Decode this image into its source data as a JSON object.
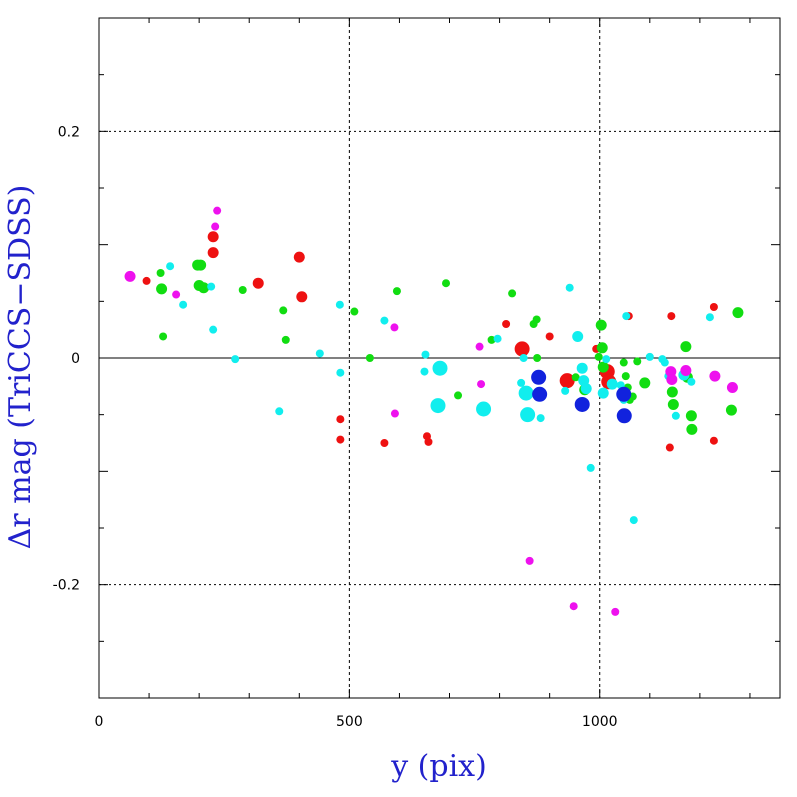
{
  "chart_data": {
    "type": "scatter",
    "title": "",
    "xlabel": "y (pix)",
    "ylabel": "Δr mag (TriCCS−SDSS)",
    "xlim": [
      0,
      1360
    ],
    "ylim": [
      -0.3,
      0.3
    ],
    "x_ticks": [
      0,
      500,
      1000
    ],
    "x_tick_labels": [
      "0",
      "500",
      "1000"
    ],
    "y_ticks": [
      -0.2,
      0,
      0.2
    ],
    "y_tick_labels": [
      "-0.2",
      "0",
      "0.2"
    ],
    "grid": true,
    "zero_line": true,
    "colors": {
      "red": "#ee1111",
      "green": "#11dd11",
      "cyan": "#11eeee",
      "magenta": "#ee11ee",
      "blue": "#1122dd"
    },
    "series": [
      {
        "color": "red",
        "points": [
          [
            95,
            0.068,
            1
          ],
          [
            228,
            0.107,
            2
          ],
          [
            228,
            0.093,
            2
          ],
          [
            318,
            0.066,
            2
          ],
          [
            400,
            0.089,
            2
          ],
          [
            405,
            0.054,
            2
          ],
          [
            482,
            -0.054,
            1
          ],
          [
            482,
            -0.072,
            1
          ],
          [
            570,
            -0.075,
            1
          ],
          [
            655,
            -0.069,
            1
          ],
          [
            658,
            -0.074,
            1
          ],
          [
            813,
            0.03,
            1
          ],
          [
            845,
            0.008,
            3
          ],
          [
            900,
            0.019,
            1
          ],
          [
            935,
            -0.02,
            3
          ],
          [
            993,
            0.008,
            1
          ],
          [
            1015,
            -0.012,
            3
          ],
          [
            1018,
            -0.021,
            3
          ],
          [
            1058,
            0.037,
            1
          ],
          [
            1143,
            0.037,
            1
          ],
          [
            1140,
            -0.079,
            1
          ],
          [
            1228,
            0.045,
            1
          ],
          [
            1228,
            -0.073,
            1
          ]
        ]
      },
      {
        "color": "green",
        "points": [
          [
            123,
            0.075,
            1
          ],
          [
            125,
            0.061,
            2
          ],
          [
            128,
            0.019,
            1
          ],
          [
            197,
            0.082,
            2
          ],
          [
            203,
            0.082,
            2
          ],
          [
            200,
            0.064,
            2
          ],
          [
            209,
            0.062,
            2
          ],
          [
            287,
            0.06,
            1
          ],
          [
            368,
            0.042,
            1
          ],
          [
            373,
            0.016,
            1
          ],
          [
            510,
            0.041,
            1
          ],
          [
            541,
            0.0,
            1
          ],
          [
            595,
            0.059,
            1
          ],
          [
            693,
            0.066,
            1
          ],
          [
            717,
            -0.033,
            1
          ],
          [
            784,
            0.016,
            1
          ],
          [
            825,
            0.057,
            1
          ],
          [
            868,
            0.03,
            1
          ],
          [
            874,
            0.034,
            1
          ],
          [
            875,
            0.0,
            1
          ],
          [
            952,
            -0.017,
            1
          ],
          [
            970,
            -0.028,
            2
          ],
          [
            998,
            0.001,
            1
          ],
          [
            1003,
            0.029,
            2
          ],
          [
            1005,
            0.009,
            2
          ],
          [
            1007,
            -0.008,
            2
          ],
          [
            1048,
            -0.004,
            1
          ],
          [
            1052,
            -0.016,
            1
          ],
          [
            1056,
            -0.026,
            1
          ],
          [
            1060,
            -0.037,
            1
          ],
          [
            1066,
            -0.034,
            1
          ],
          [
            1075,
            -0.003,
            1
          ],
          [
            1090,
            -0.022,
            2
          ],
          [
            1143,
            -0.016,
            1
          ],
          [
            1145,
            -0.03,
            2
          ],
          [
            1147,
            -0.041,
            2
          ],
          [
            1172,
            0.01,
            2
          ],
          [
            1175,
            -0.017,
            2
          ],
          [
            1183,
            -0.051,
            2
          ],
          [
            1184,
            -0.063,
            2
          ],
          [
            1263,
            -0.046,
            2
          ],
          [
            1276,
            0.04,
            2
          ]
        ]
      },
      {
        "color": "cyan",
        "points": [
          [
            142,
            0.081,
            1
          ],
          [
            168,
            0.047,
            1
          ],
          [
            224,
            0.063,
            1
          ],
          [
            228,
            0.025,
            1
          ],
          [
            272,
            -0.001,
            1
          ],
          [
            360,
            -0.047,
            1
          ],
          [
            441,
            0.004,
            1
          ],
          [
            481,
            0.047,
            1
          ],
          [
            482,
            -0.013,
            1
          ],
          [
            570,
            0.033,
            1
          ],
          [
            650,
            -0.012,
            1
          ],
          [
            652,
            0.003,
            1
          ],
          [
            677,
            -0.042,
            3
          ],
          [
            681,
            -0.009,
            3
          ],
          [
            768,
            -0.045,
            3
          ],
          [
            796,
            0.017,
            1
          ],
          [
            843,
            -0.022,
            1
          ],
          [
            848,
            0.0,
            1
          ],
          [
            853,
            -0.031,
            3
          ],
          [
            856,
            -0.05,
            3
          ],
          [
            882,
            -0.053,
            1
          ],
          [
            931,
            -0.029,
            1
          ],
          [
            940,
            0.062,
            1
          ],
          [
            956,
            0.019,
            2
          ],
          [
            965,
            -0.009,
            2
          ],
          [
            968,
            -0.02,
            2
          ],
          [
            973,
            -0.027,
            2
          ],
          [
            982,
            -0.097,
            1
          ],
          [
            1007,
            -0.031,
            2
          ],
          [
            1013,
            -0.001,
            1
          ],
          [
            1025,
            -0.023,
            2
          ],
          [
            1042,
            -0.024,
            1
          ],
          [
            1048,
            -0.037,
            1
          ],
          [
            1053,
            0.037,
            1
          ],
          [
            1068,
            -0.143,
            1
          ],
          [
            1100,
            0.001,
            1
          ],
          [
            1125,
            -0.001,
            1
          ],
          [
            1130,
            -0.004,
            1
          ],
          [
            1137,
            -0.016,
            1
          ],
          [
            1152,
            -0.051,
            1
          ],
          [
            1168,
            -0.015,
            2
          ],
          [
            1183,
            -0.021,
            1
          ],
          [
            1220,
            0.036,
            1
          ]
        ]
      },
      {
        "color": "magenta",
        "points": [
          [
            62,
            0.072,
            2
          ],
          [
            154,
            0.056,
            1
          ],
          [
            232,
            0.116,
            1
          ],
          [
            236,
            0.13,
            1
          ],
          [
            590,
            0.027,
            1
          ],
          [
            591,
            -0.049,
            1
          ],
          [
            760,
            0.01,
            1
          ],
          [
            763,
            -0.023,
            1
          ],
          [
            860,
            -0.179,
            1
          ],
          [
            948,
            -0.219,
            1
          ],
          [
            1031,
            -0.224,
            1
          ],
          [
            1142,
            -0.012,
            2
          ],
          [
            1144,
            -0.019,
            2
          ],
          [
            1172,
            -0.011,
            2
          ],
          [
            1230,
            -0.016,
            2
          ],
          [
            1265,
            -0.026,
            2
          ]
        ]
      },
      {
        "color": "blue",
        "points": [
          [
            878,
            -0.017,
            3
          ],
          [
            880,
            -0.032,
            3
          ],
          [
            965,
            -0.041,
            3
          ],
          [
            1048,
            -0.032,
            3
          ],
          [
            1049,
            -0.051,
            3
          ]
        ]
      }
    ]
  }
}
